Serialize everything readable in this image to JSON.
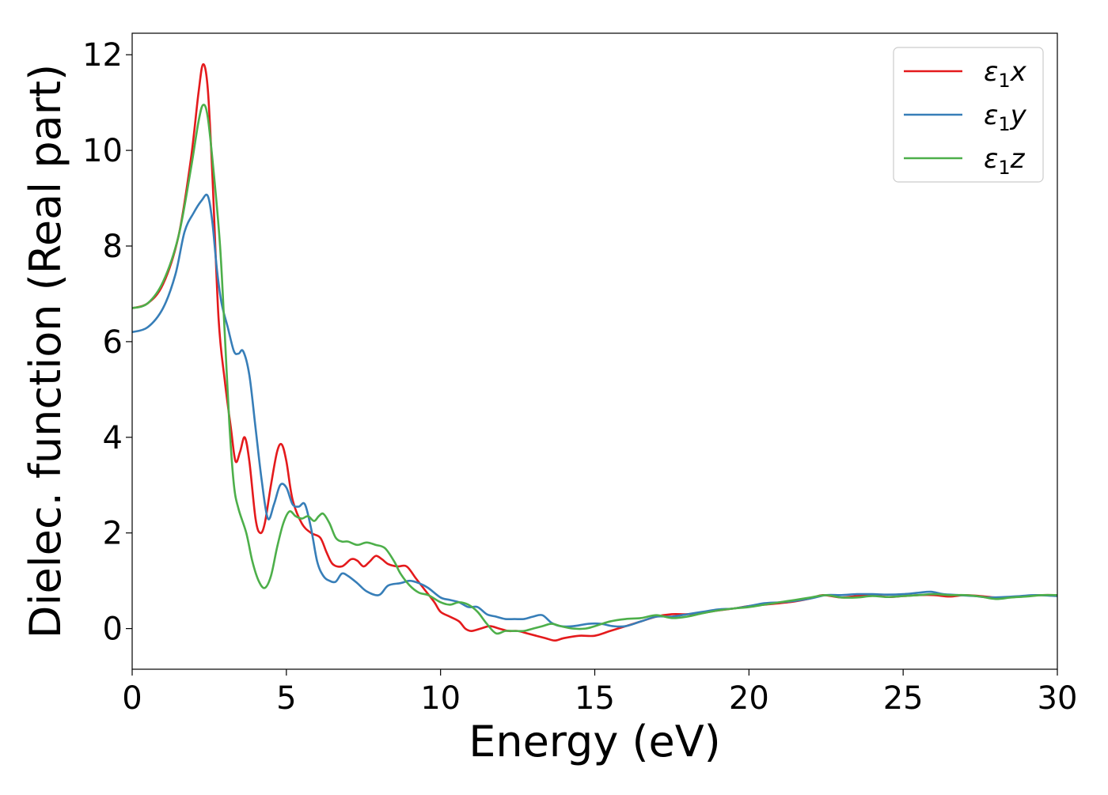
{
  "chart_data": {
    "type": "line",
    "title": "",
    "xlabel": "Energy (eV)",
    "ylabel": "Dielec. function (Real part)",
    "xlim": [
      0,
      30
    ],
    "ylim": [
      -0.85,
      12.45
    ],
    "xticks": [
      0,
      5,
      10,
      15,
      20,
      25,
      30
    ],
    "xtick_labels": [
      "0",
      "5",
      "10",
      "15",
      "20",
      "25",
      "30"
    ],
    "yticks": [
      0,
      2,
      4,
      6,
      8,
      10,
      12
    ],
    "ytick_labels": [
      "0",
      "2",
      "4",
      "6",
      "8",
      "10",
      "12"
    ],
    "grid": false,
    "legend_position": "top-right",
    "series": [
      {
        "name": "ε1x",
        "legend_base": "ε",
        "legend_sub": "1",
        "legend_suffix": "x",
        "color": "#e41a1c",
        "points": [
          [
            0,
            6.7
          ],
          [
            0.5,
            6.8
          ],
          [
            1.0,
            7.2
          ],
          [
            1.5,
            8.2
          ],
          [
            1.9,
            9.8
          ],
          [
            2.15,
            11.2
          ],
          [
            2.3,
            11.8
          ],
          [
            2.45,
            11.3
          ],
          [
            2.6,
            9.5
          ],
          [
            2.8,
            6.5
          ],
          [
            3.0,
            5.2
          ],
          [
            3.2,
            4.2
          ],
          [
            3.35,
            3.5
          ],
          [
            3.5,
            3.7
          ],
          [
            3.65,
            4.0
          ],
          [
            3.8,
            3.5
          ],
          [
            4.0,
            2.3
          ],
          [
            4.15,
            2.0
          ],
          [
            4.3,
            2.2
          ],
          [
            4.5,
            3.0
          ],
          [
            4.7,
            3.7
          ],
          [
            4.85,
            3.85
          ],
          [
            5.0,
            3.5
          ],
          [
            5.2,
            2.7
          ],
          [
            5.5,
            2.2
          ],
          [
            5.8,
            2.0
          ],
          [
            6.1,
            1.9
          ],
          [
            6.3,
            1.6
          ],
          [
            6.5,
            1.35
          ],
          [
            6.8,
            1.3
          ],
          [
            7.1,
            1.45
          ],
          [
            7.3,
            1.42
          ],
          [
            7.5,
            1.3
          ],
          [
            7.7,
            1.4
          ],
          [
            7.9,
            1.52
          ],
          [
            8.1,
            1.45
          ],
          [
            8.3,
            1.35
          ],
          [
            8.6,
            1.3
          ],
          [
            8.9,
            1.3
          ],
          [
            9.2,
            1.05
          ],
          [
            9.5,
            0.8
          ],
          [
            9.8,
            0.55
          ],
          [
            10.0,
            0.35
          ],
          [
            10.3,
            0.25
          ],
          [
            10.6,
            0.15
          ],
          [
            10.8,
            0.0
          ],
          [
            11.0,
            -0.05
          ],
          [
            11.3,
            0.0
          ],
          [
            11.6,
            0.05
          ],
          [
            11.9,
            0.0
          ],
          [
            12.2,
            -0.05
          ],
          [
            12.5,
            -0.05
          ],
          [
            12.8,
            -0.1
          ],
          [
            13.1,
            -0.15
          ],
          [
            13.4,
            -0.2
          ],
          [
            13.7,
            -0.25
          ],
          [
            14.0,
            -0.2
          ],
          [
            14.5,
            -0.15
          ],
          [
            15.0,
            -0.15
          ],
          [
            15.5,
            -0.05
          ],
          [
            16.0,
            0.05
          ],
          [
            16.5,
            0.15
          ],
          [
            17.0,
            0.25
          ],
          [
            17.5,
            0.3
          ],
          [
            18.0,
            0.3
          ],
          [
            18.5,
            0.33
          ],
          [
            19.0,
            0.38
          ],
          [
            19.5,
            0.42
          ],
          [
            20.0,
            0.47
          ],
          [
            20.5,
            0.5
          ],
          [
            21.0,
            0.53
          ],
          [
            21.5,
            0.57
          ],
          [
            22.0,
            0.63
          ],
          [
            22.4,
            0.7
          ],
          [
            23.0,
            0.65
          ],
          [
            23.5,
            0.68
          ],
          [
            24.0,
            0.7
          ],
          [
            24.5,
            0.66
          ],
          [
            25.0,
            0.68
          ],
          [
            25.5,
            0.7
          ],
          [
            26.0,
            0.7
          ],
          [
            26.5,
            0.67
          ],
          [
            27.0,
            0.7
          ],
          [
            27.5,
            0.68
          ],
          [
            28.0,
            0.65
          ],
          [
            28.5,
            0.66
          ],
          [
            29.0,
            0.68
          ],
          [
            29.5,
            0.7
          ],
          [
            30.0,
            0.7
          ]
        ]
      },
      {
        "name": "ε1y",
        "legend_base": "ε",
        "legend_sub": "1",
        "legend_suffix": "y",
        "color": "#377eb8",
        "points": [
          [
            0,
            6.2
          ],
          [
            0.5,
            6.3
          ],
          [
            1.0,
            6.7
          ],
          [
            1.4,
            7.4
          ],
          [
            1.7,
            8.3
          ],
          [
            2.0,
            8.7
          ],
          [
            2.25,
            8.95
          ],
          [
            2.45,
            9.05
          ],
          [
            2.6,
            8.5
          ],
          [
            2.75,
            7.5
          ],
          [
            2.9,
            6.8
          ],
          [
            3.1,
            6.3
          ],
          [
            3.3,
            5.8
          ],
          [
            3.45,
            5.75
          ],
          [
            3.6,
            5.8
          ],
          [
            3.8,
            5.3
          ],
          [
            4.0,
            4.2
          ],
          [
            4.2,
            3.1
          ],
          [
            4.4,
            2.3
          ],
          [
            4.6,
            2.6
          ],
          [
            4.8,
            3.0
          ],
          [
            5.0,
            2.95
          ],
          [
            5.2,
            2.6
          ],
          [
            5.4,
            2.55
          ],
          [
            5.6,
            2.6
          ],
          [
            5.8,
            2.1
          ],
          [
            6.0,
            1.4
          ],
          [
            6.2,
            1.1
          ],
          [
            6.4,
            1.0
          ],
          [
            6.6,
            0.98
          ],
          [
            6.8,
            1.15
          ],
          [
            7.0,
            1.1
          ],
          [
            7.3,
            0.95
          ],
          [
            7.6,
            0.78
          ],
          [
            8.0,
            0.7
          ],
          [
            8.3,
            0.9
          ],
          [
            8.7,
            0.95
          ],
          [
            9.0,
            1.0
          ],
          [
            9.3,
            0.95
          ],
          [
            9.6,
            0.85
          ],
          [
            10.0,
            0.65
          ],
          [
            10.3,
            0.6
          ],
          [
            10.6,
            0.55
          ],
          [
            10.9,
            0.45
          ],
          [
            11.2,
            0.45
          ],
          [
            11.5,
            0.3
          ],
          [
            11.8,
            0.25
          ],
          [
            12.1,
            0.2
          ],
          [
            12.4,
            0.2
          ],
          [
            12.7,
            0.2
          ],
          [
            13.0,
            0.25
          ],
          [
            13.3,
            0.28
          ],
          [
            13.6,
            0.12
          ],
          [
            13.9,
            0.05
          ],
          [
            14.3,
            0.05
          ],
          [
            14.8,
            0.1
          ],
          [
            15.2,
            0.1
          ],
          [
            15.6,
            0.05
          ],
          [
            16.0,
            0.05
          ],
          [
            16.5,
            0.15
          ],
          [
            17.0,
            0.25
          ],
          [
            17.5,
            0.25
          ],
          [
            18.0,
            0.3
          ],
          [
            18.5,
            0.35
          ],
          [
            19.0,
            0.4
          ],
          [
            19.5,
            0.42
          ],
          [
            20.0,
            0.47
          ],
          [
            20.5,
            0.53
          ],
          [
            21.0,
            0.55
          ],
          [
            21.5,
            0.58
          ],
          [
            22.0,
            0.63
          ],
          [
            22.5,
            0.7
          ],
          [
            23.0,
            0.7
          ],
          [
            23.5,
            0.72
          ],
          [
            24.0,
            0.72
          ],
          [
            24.5,
            0.71
          ],
          [
            25.0,
            0.72
          ],
          [
            25.5,
            0.75
          ],
          [
            25.9,
            0.77
          ],
          [
            26.3,
            0.72
          ],
          [
            26.8,
            0.7
          ],
          [
            27.3,
            0.68
          ],
          [
            27.8,
            0.65
          ],
          [
            28.3,
            0.66
          ],
          [
            28.8,
            0.68
          ],
          [
            29.3,
            0.7
          ],
          [
            30.0,
            0.68
          ]
        ]
      },
      {
        "name": "ε1z",
        "legend_base": "ε",
        "legend_sub": "1",
        "legend_suffix": "z",
        "color": "#4daf4a",
        "points": [
          [
            0,
            6.7
          ],
          [
            0.5,
            6.8
          ],
          [
            1.0,
            7.25
          ],
          [
            1.5,
            8.2
          ],
          [
            1.9,
            9.6
          ],
          [
            2.15,
            10.6
          ],
          [
            2.3,
            10.95
          ],
          [
            2.45,
            10.7
          ],
          [
            2.65,
            9.5
          ],
          [
            2.85,
            8.0
          ],
          [
            3.0,
            6.2
          ],
          [
            3.15,
            4.3
          ],
          [
            3.3,
            3.0
          ],
          [
            3.45,
            2.5
          ],
          [
            3.7,
            2.0
          ],
          [
            3.9,
            1.4
          ],
          [
            4.1,
            1.0
          ],
          [
            4.3,
            0.85
          ],
          [
            4.5,
            1.1
          ],
          [
            4.7,
            1.7
          ],
          [
            4.9,
            2.2
          ],
          [
            5.1,
            2.45
          ],
          [
            5.3,
            2.35
          ],
          [
            5.5,
            2.3
          ],
          [
            5.7,
            2.35
          ],
          [
            5.9,
            2.25
          ],
          [
            6.05,
            2.35
          ],
          [
            6.2,
            2.4
          ],
          [
            6.4,
            2.2
          ],
          [
            6.6,
            1.9
          ],
          [
            6.8,
            1.82
          ],
          [
            7.0,
            1.82
          ],
          [
            7.3,
            1.75
          ],
          [
            7.6,
            1.8
          ],
          [
            7.9,
            1.75
          ],
          [
            8.2,
            1.68
          ],
          [
            8.5,
            1.4
          ],
          [
            8.7,
            1.15
          ],
          [
            9.0,
            0.9
          ],
          [
            9.3,
            0.75
          ],
          [
            9.6,
            0.7
          ],
          [
            10.0,
            0.55
          ],
          [
            10.3,
            0.5
          ],
          [
            10.6,
            0.55
          ],
          [
            10.9,
            0.5
          ],
          [
            11.2,
            0.35
          ],
          [
            11.5,
            0.1
          ],
          [
            11.8,
            -0.1
          ],
          [
            12.1,
            -0.05
          ],
          [
            12.4,
            -0.05
          ],
          [
            12.7,
            -0.05
          ],
          [
            13.0,
            0.0
          ],
          [
            13.3,
            0.05
          ],
          [
            13.6,
            0.1
          ],
          [
            13.9,
            0.05
          ],
          [
            14.3,
            0.0
          ],
          [
            14.7,
            0.0
          ],
          [
            15.0,
            0.05
          ],
          [
            15.5,
            0.15
          ],
          [
            16.0,
            0.2
          ],
          [
            16.5,
            0.22
          ],
          [
            17.0,
            0.28
          ],
          [
            17.5,
            0.22
          ],
          [
            18.0,
            0.25
          ],
          [
            18.5,
            0.32
          ],
          [
            19.0,
            0.38
          ],
          [
            19.5,
            0.42
          ],
          [
            20.0,
            0.45
          ],
          [
            20.5,
            0.5
          ],
          [
            21.0,
            0.55
          ],
          [
            21.5,
            0.6
          ],
          [
            22.0,
            0.65
          ],
          [
            22.5,
            0.7
          ],
          [
            23.0,
            0.65
          ],
          [
            23.5,
            0.65
          ],
          [
            24.0,
            0.68
          ],
          [
            24.5,
            0.66
          ],
          [
            25.0,
            0.68
          ],
          [
            25.5,
            0.7
          ],
          [
            26.0,
            0.72
          ],
          [
            26.5,
            0.7
          ],
          [
            27.0,
            0.7
          ],
          [
            27.5,
            0.67
          ],
          [
            28.0,
            0.62
          ],
          [
            28.5,
            0.65
          ],
          [
            29.0,
            0.67
          ],
          [
            29.5,
            0.7
          ],
          [
            30.0,
            0.7
          ]
        ]
      }
    ]
  }
}
